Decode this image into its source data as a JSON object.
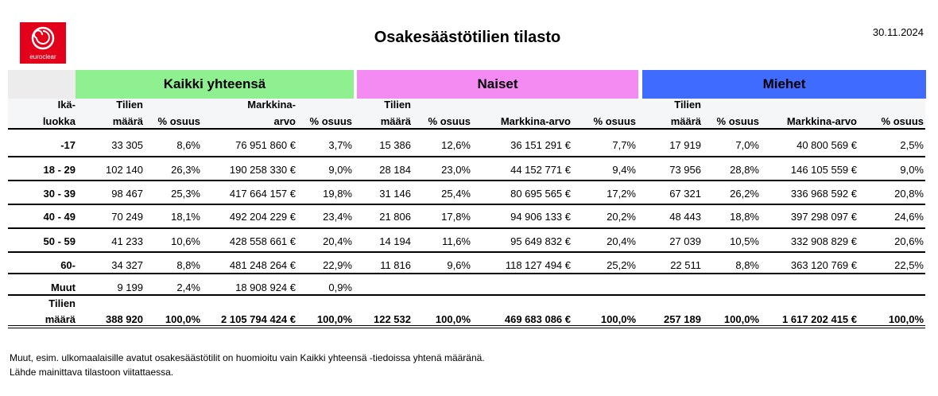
{
  "header": {
    "logo_text": "euroclear",
    "title": "Osakesäästötilien tilasto",
    "date": "30.11.2024"
  },
  "table": {
    "groups": [
      "Kaikki yhteensä",
      "Naiset",
      "Miehet"
    ],
    "columns": [
      [
        "Ikä-",
        "luokka"
      ],
      [
        "Tilien",
        "määrä"
      ],
      [
        "% osuus"
      ],
      [
        "Markkina-",
        "arvo"
      ],
      [
        "% osuus"
      ],
      [
        "Tilien",
        "määrä"
      ],
      [
        "% osuus"
      ],
      [
        "Markkina-arvo"
      ],
      [
        "% osuus"
      ],
      [
        "Tilien",
        "määrä"
      ],
      [
        "% osuus"
      ],
      [
        "Markkina-arvo"
      ],
      [
        "% osuus"
      ]
    ],
    "rows": [
      {
        "label": "-17",
        "cells": [
          "33 305",
          "8,6%",
          "76 951 860  €",
          "3,7%",
          "15 386",
          "12,6%",
          "36 151 291  €",
          "7,7%",
          "17 919",
          "7,0%",
          "40 800 569  €",
          "2,5%"
        ]
      },
      {
        "label": "18 - 29",
        "cells": [
          "102 140",
          "26,3%",
          "190 258 330  €",
          "9,0%",
          "28 184",
          "23,0%",
          "44 152 771  €",
          "9,4%",
          "73 956",
          "28,8%",
          "146 105 559  €",
          "9,0%"
        ]
      },
      {
        "label": "30 - 39",
        "cells": [
          "98 467",
          "25,3%",
          "417 664 157  €",
          "19,8%",
          "31 146",
          "25,4%",
          "80 695 565  €",
          "17,2%",
          "67 321",
          "26,2%",
          "336 968 592  €",
          "20,8%"
        ]
      },
      {
        "label": "40 - 49",
        "cells": [
          "70 249",
          "18,1%",
          "492 204 229  €",
          "23,4%",
          "21 806",
          "17,8%",
          "94 906 133  €",
          "20,2%",
          "48 443",
          "18,8%",
          "397 298 097  €",
          "24,6%"
        ]
      },
      {
        "label": "50 - 59",
        "cells": [
          "41 233",
          "10,6%",
          "428 558 661  €",
          "20,4%",
          "14 194",
          "11,6%",
          "95 649 832  €",
          "20,4%",
          "27 039",
          "10,5%",
          "332 908 829  €",
          "20,6%"
        ]
      },
      {
        "label": "60-",
        "cells": [
          "34 327",
          "8,8%",
          "481 248 264  €",
          "22,9%",
          "11 816",
          "9,6%",
          "118 127 494  €",
          "25,2%",
          "22 511",
          "8,8%",
          "363 120 769  €",
          "22,5%"
        ]
      },
      {
        "label": "Muut",
        "cells": [
          "9 199",
          "2,4%",
          "18 908 924  €",
          "0,9%"
        ]
      },
      {
        "label": [
          "Tilien",
          "määrä"
        ],
        "cells": [
          "388 920",
          "100,0%",
          "2 105 794 424  €",
          "100,0%",
          "122 532",
          "100,0%",
          "469 683 086  €",
          "100,0%",
          "257 189",
          "100,0%",
          "1 617 202 415  €",
          "100,0%"
        ]
      }
    ]
  },
  "footnotes": [
    "Muut, esim. ulkomaalaisille avatut osakesäästötilit on huomioitu vain Kaikki yhteensä -tiedoissa yhtenä määränä.",
    "Lähde mainittava tilastoon viitattaessa."
  ]
}
